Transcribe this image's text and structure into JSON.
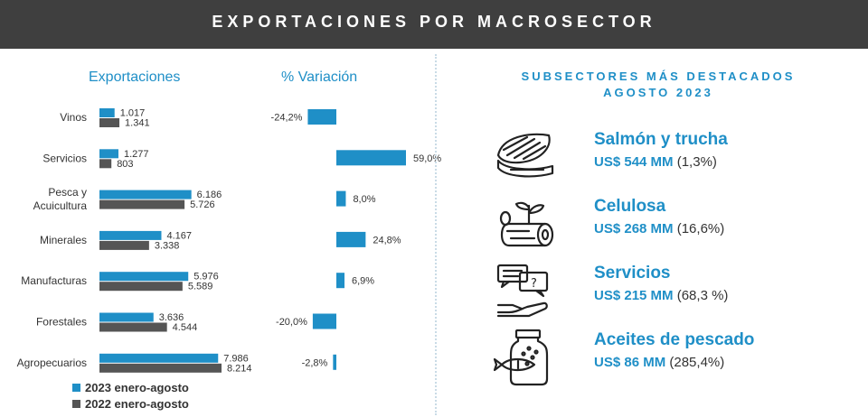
{
  "header": {
    "title": "EXPORTACIONES POR MACROSECTOR"
  },
  "left": {
    "exports_title": "Exportaciones",
    "variation_title": "% Variación",
    "legend": [
      {
        "label": "2023 enero-agosto",
        "color": "#1f8fc7"
      },
      {
        "label": "2022 enero-agosto",
        "color": "#555555"
      }
    ]
  },
  "chart_data": {
    "type": "bar",
    "categories": [
      "Vinos",
      "Servicios",
      "Pesca y Acuicultura",
      "Minerales",
      "Manufacturas",
      "Forestales",
      "Agropecuarios"
    ],
    "category_lines": [
      [
        "Vinos"
      ],
      [
        "Servicios"
      ],
      [
        "Pesca y",
        "Acuicultura"
      ],
      [
        "Minerales"
      ],
      [
        "Manufacturas"
      ],
      [
        "Forestales"
      ],
      [
        "Agropecuarios"
      ]
    ],
    "series": [
      {
        "name": "2023 enero-agosto",
        "values": [
          1017,
          1277,
          6186,
          4167,
          5976,
          3636,
          7986
        ],
        "labels": [
          "1.017",
          "1.277",
          "6.186",
          "4.167",
          "5.976",
          "3.636",
          "7.986"
        ],
        "color": "#1f8fc7"
      },
      {
        "name": "2022 enero-agosto",
        "values": [
          1341,
          803,
          5726,
          3338,
          5589,
          4544,
          8214
        ],
        "labels": [
          "1.341",
          "803",
          "5.726",
          "3.338",
          "5.589",
          "4.544",
          "8.214"
        ],
        "color": "#555555"
      }
    ],
    "variation": {
      "values": [
        -24.2,
        59.0,
        8.0,
        24.8,
        6.9,
        -20.0,
        -2.8
      ],
      "labels": [
        "-24,2%",
        "59,0%",
        "8,0%",
        "24,8%",
        "6,9%",
        "-20,0%",
        "-2,8%"
      ],
      "color": "#1f8fc7"
    }
  },
  "right": {
    "title_line1": "SUBSECTORES MÁS DESTACADOS",
    "title_line2": "AGOSTO 2023",
    "items": [
      {
        "icon": "salmon-icon",
        "name": "Salmón y trucha",
        "amount": "US$ 544 MM",
        "change": "(1,3%)"
      },
      {
        "icon": "log-sprout-icon",
        "name": "Celulosa",
        "amount": "US$ 268 MM",
        "change": "(16,6%)"
      },
      {
        "icon": "services-chat-icon",
        "name": "Servicios",
        "amount": "US$ 215 MM",
        "change": "(68,3 %)"
      },
      {
        "icon": "fish-jar-icon",
        "name": "Aceites de pescado",
        "amount": "US$ 86 MM",
        "change": "(285,4%)"
      }
    ]
  }
}
